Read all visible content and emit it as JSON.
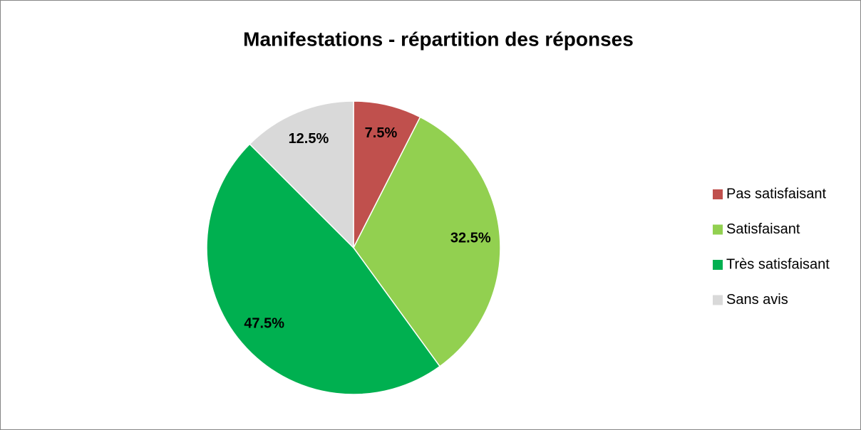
{
  "chart_data": {
    "type": "pie",
    "title": "Manifestations - répartition des réponses",
    "categories": [
      "Pas satisfaisant",
      "Satisfaisant",
      "Très satisfaisant",
      "Sans avis"
    ],
    "values": [
      7.5,
      32.5,
      47.5,
      12.5
    ],
    "value_labels": [
      "7.5%",
      "32.5%",
      "47.5%",
      "12.5%"
    ],
    "colors": [
      "#c0504d",
      "#92d050",
      "#00b050",
      "#d9d9d9"
    ],
    "legend": "right"
  }
}
